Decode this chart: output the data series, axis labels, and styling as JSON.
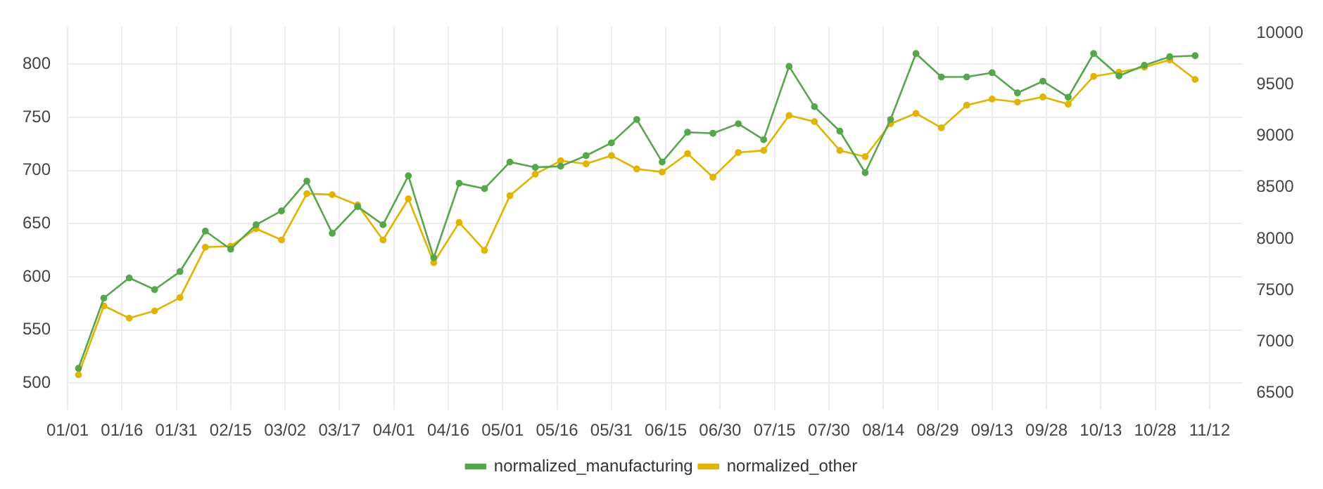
{
  "chart_data": {
    "type": "line",
    "x": [
      "--01-04",
      "--01-11",
      "--01-18",
      "--01-25",
      "--02-01",
      "--02-08",
      "--02-15",
      "--02-22",
      "--03-01",
      "--03-08",
      "--03-15",
      "--03-22",
      "--03-29",
      "--04-05",
      "--04-12",
      "--04-19",
      "--04-26",
      "--05-03",
      "--05-10",
      "--05-17",
      "--05-24",
      "--05-31",
      "--06-07",
      "--06-14",
      "--06-21",
      "--06-28",
      "--07-05",
      "--07-12",
      "--07-19",
      "--07-26",
      "--08-02",
      "--08-09",
      "--08-16",
      "--08-23",
      "--08-30",
      "--09-06",
      "--09-13",
      "--09-20",
      "--09-27",
      "--10-04",
      "--10-11",
      "--10-18",
      "--10-25",
      "--11-01",
      "--11-08"
    ],
    "series": [
      {
        "name": "normalized_manufacturing",
        "color": "#56a64b",
        "values": [
          514,
          580,
          599,
          588,
          605,
          643,
          626,
          649,
          662,
          690,
          641,
          666,
          649,
          695,
          618,
          688,
          683,
          708,
          703,
          704,
          714,
          726,
          748,
          708,
          736,
          735,
          744,
          729,
          798,
          760,
          737,
          698,
          748,
          810,
          788,
          788,
          792,
          773,
          784,
          769,
          810,
          789,
          799,
          807,
          808
        ]
      },
      {
        "name": "normalized_other",
        "color": "#e0b400",
        "axis": "y2",
        "values": [
          6680,
          7350,
          7230,
          7300,
          7430,
          7920,
          7930,
          8100,
          7990,
          8440,
          8430,
          8330,
          7990,
          8390,
          7770,
          8160,
          7890,
          8420,
          8630,
          8760,
          8730,
          8810,
          8680,
          8650,
          8830,
          8600,
          8840,
          8860,
          9200,
          9140,
          8860,
          8800,
          9120,
          9220,
          9080,
          9300,
          9360,
          9330,
          9380,
          9310,
          9580,
          9620,
          9670,
          9740,
          9550
        ]
      }
    ],
    "xlim": [
      "--01-01",
      "--11-21"
    ],
    "xticks": [
      {
        "value": "--01-01",
        "label": "01/01"
      },
      {
        "value": "--01-16",
        "label": "01/16"
      },
      {
        "value": "--01-31",
        "label": "01/31"
      },
      {
        "value": "--02-15",
        "label": "02/15"
      },
      {
        "value": "--03-02",
        "label": "03/02"
      },
      {
        "value": "--03-17",
        "label": "03/17"
      },
      {
        "value": "--04-01",
        "label": "04/01"
      },
      {
        "value": "--04-16",
        "label": "04/16"
      },
      {
        "value": "--05-01",
        "label": "05/01"
      },
      {
        "value": "--05-16",
        "label": "05/16"
      },
      {
        "value": "--05-31",
        "label": "05/31"
      },
      {
        "value": "--06-15",
        "label": "06/15"
      },
      {
        "value": "--06-30",
        "label": "06/30"
      },
      {
        "value": "--07-15",
        "label": "07/15"
      },
      {
        "value": "--07-30",
        "label": "07/30"
      },
      {
        "value": "--08-14",
        "label": "08/14"
      },
      {
        "value": "--08-29",
        "label": "08/29"
      },
      {
        "value": "--09-13",
        "label": "09/13"
      },
      {
        "value": "--09-28",
        "label": "09/28"
      },
      {
        "value": "--10-13",
        "label": "10/13"
      },
      {
        "value": "--10-28",
        "label": "10/28"
      },
      {
        "value": "--11-12",
        "label": "11/12"
      }
    ],
    "ylim": [
      475,
      835
    ],
    "yticks": [
      500,
      550,
      600,
      650,
      700,
      750,
      800
    ],
    "y2lim": [
      6340,
      10060
    ],
    "y2ticks": [
      6500,
      7000,
      7500,
      8000,
      8500,
      9000,
      9500,
      10000
    ],
    "grid": true,
    "legend": "bottom",
    "marker": "circle",
    "line_style": "solid"
  }
}
